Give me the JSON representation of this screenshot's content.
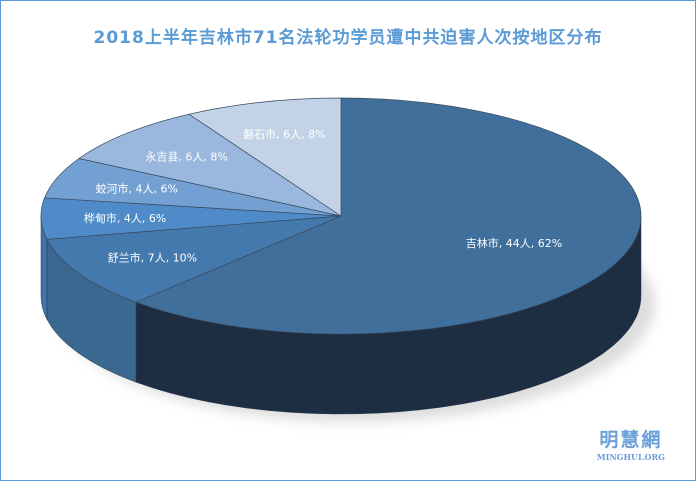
{
  "chart_data": {
    "type": "pie",
    "title": "2018上半年吉林市71名法轮功学员遭中共迫害人次按地区分布",
    "unit": "人",
    "slices": [
      {
        "label": "吉林市",
        "value": 44,
        "percent": "62%",
        "text": "吉林市, 44人, 62%",
        "color": "#3f6f9a",
        "side": "#1d2d42"
      },
      {
        "label": "舒兰市",
        "value": 7,
        "percent": "10%",
        "text": "舒兰市, 7人, 10%",
        "color": "#4379ad",
        "side": "#3a6890"
      },
      {
        "label": "桦甸市",
        "value": 4,
        "percent": "6%",
        "text": "桦甸市, 4人, 6%",
        "color": "#4e8bc8",
        "side": "#3f75aa"
      },
      {
        "label": "蛟河市",
        "value": 4,
        "percent": "6%",
        "text": "蛟河市, 4人, 6%",
        "color": "#72a0d3",
        "side": "#5c88b8"
      },
      {
        "label": "永吉县",
        "value": 6,
        "percent": "8%",
        "text": "永吉县, 6人, 8%",
        "color": "#9ab8dd",
        "side": "#7f9dc2"
      },
      {
        "label": "磐石市",
        "value": 6,
        "percent": "8%",
        "text": "磐石市, 6人, 8%",
        "color": "#c3d3e7",
        "side": "#a5b7cd"
      }
    ],
    "legend": "none"
  },
  "watermark": {
    "cn": "明慧網",
    "en": "MINGHUI.ORG"
  }
}
